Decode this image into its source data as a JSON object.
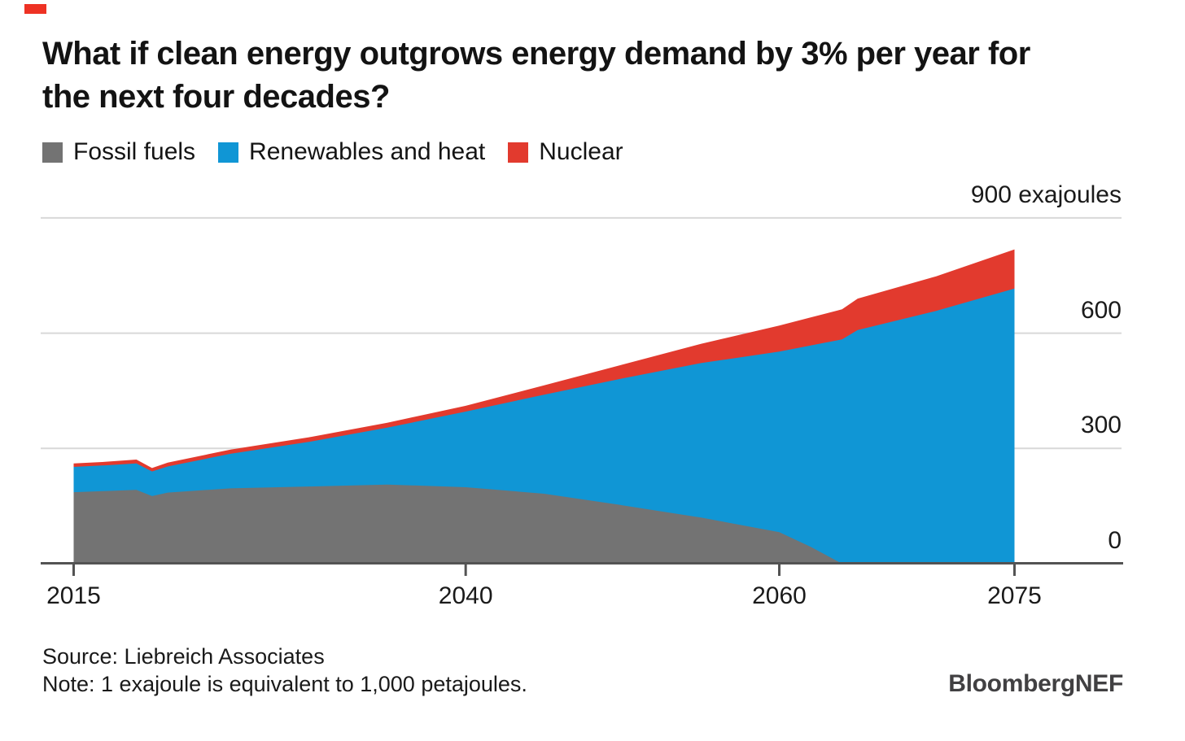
{
  "brand": {
    "mark_color": "#ee3224",
    "logo_text": "BloombergNEF"
  },
  "title": {
    "line1": "What if clean energy outgrows energy demand by 3% per year for",
    "line2": "the next four decades?"
  },
  "legend": {
    "items": [
      {
        "label": "Fossil fuels",
        "color": "#737373"
      },
      {
        "label": "Renewables and heat",
        "color": "#1096d5"
      },
      {
        "label": "Nuclear",
        "color": "#e23a2e"
      }
    ]
  },
  "y_axis": {
    "labels": [
      {
        "text": "900 exajoules",
        "value": 900
      },
      {
        "text": "600",
        "value": 600
      },
      {
        "text": "300",
        "value": 300
      },
      {
        "text": "0",
        "value": 0
      }
    ]
  },
  "x_axis": {
    "labels": [
      {
        "text": "2015",
        "year": 2015
      },
      {
        "text": "2040",
        "year": 2040
      },
      {
        "text": "2060",
        "year": 2060
      },
      {
        "text": "2075",
        "year": 2075
      }
    ]
  },
  "footer": {
    "source": "Source: Liebreich Associates",
    "note": "Note: 1 exajoule is equivalent to 1,000 petajoules.",
    "logo": "BloombergNEF"
  },
  "chart_data": {
    "type": "area",
    "stacked": true,
    "title": "What if clean energy outgrows energy demand by 3% per year for the next four decades?",
    "unit": "exajoules",
    "xlim": [
      2015,
      2075
    ],
    "ylim": [
      0,
      900
    ],
    "gridline_values": [
      300,
      600,
      900
    ],
    "x_tick_years": [
      2015,
      2040,
      2060,
      2075
    ],
    "legend_position": "top-left",
    "x_years": [
      2015,
      2017,
      2019,
      2020,
      2021,
      2025,
      2030,
      2035,
      2040,
      2045,
      2050,
      2055,
      2060,
      2062,
      2064,
      2065,
      2070,
      2075
    ],
    "series": [
      {
        "name": "Fossil fuels",
        "color": "#737373",
        "values": [
          186,
          189,
          192,
          176,
          185,
          196,
          201,
          206,
          199,
          182,
          152,
          120,
          82,
          44,
          0,
          0,
          0,
          0
        ]
      },
      {
        "name": "Renewables and heat",
        "color": "#1096d5",
        "values": [
          66,
          67,
          69,
          64,
          68,
          90,
          116,
          148,
          197,
          258,
          330,
          402,
          470,
          524,
          584,
          608,
          658,
          716
        ]
      },
      {
        "name": "Nuclear",
        "color": "#e23a2e",
        "values": [
          9,
          9,
          10,
          9,
          10,
          11,
          12,
          13,
          15,
          24,
          36,
          50,
          68,
          73,
          78,
          82,
          90,
          102
        ]
      }
    ],
    "colors": {
      "gridline": "#d8d8d8",
      "axis": "#535353"
    }
  }
}
